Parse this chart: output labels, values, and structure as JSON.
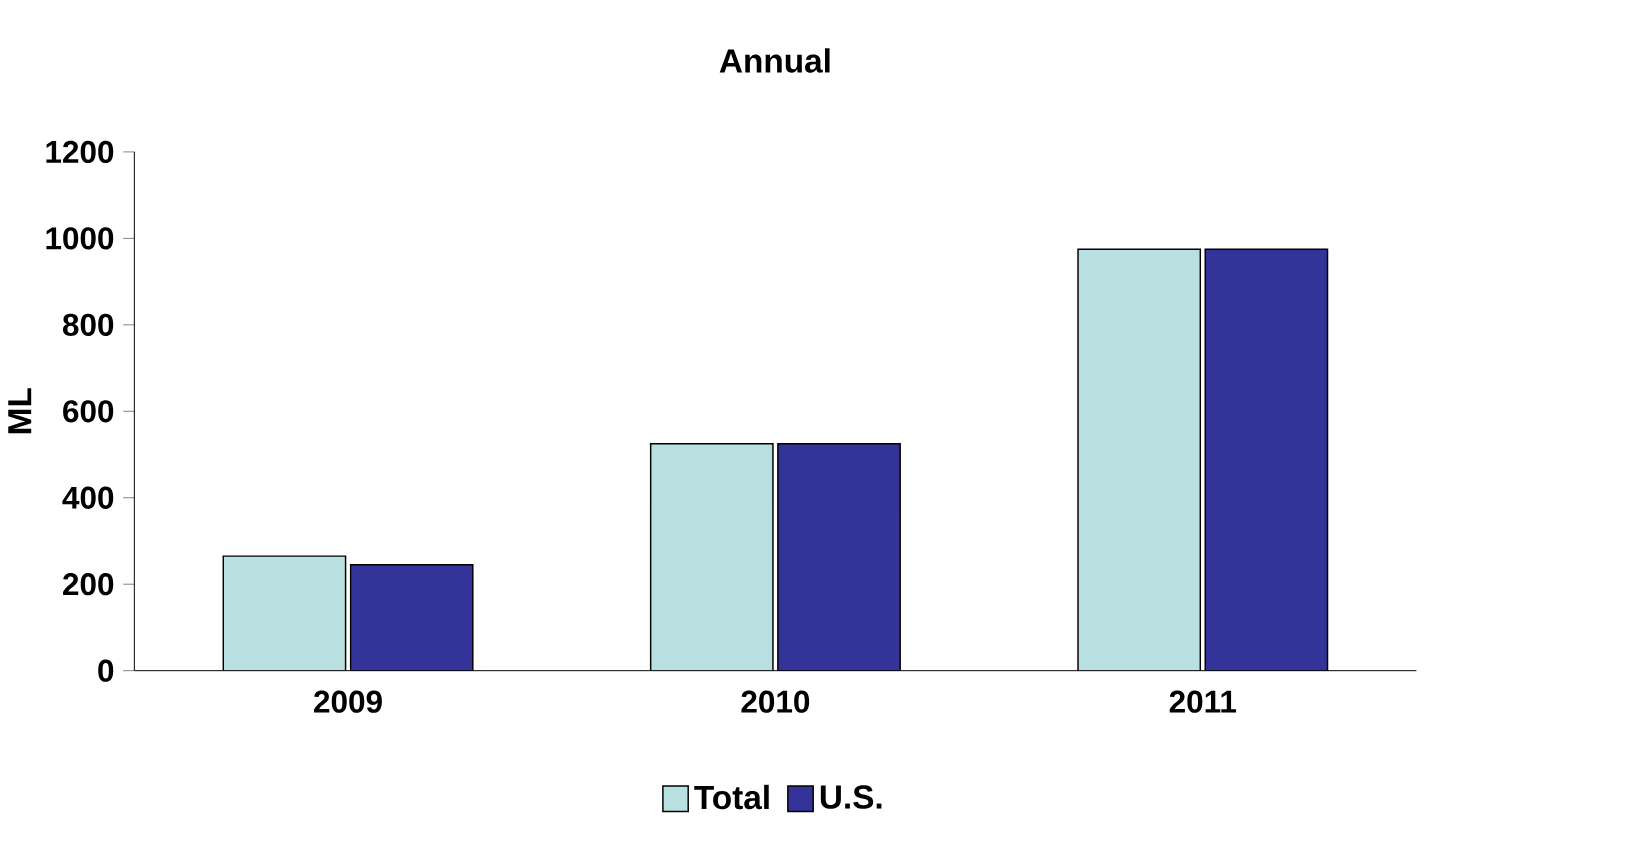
{
  "chart_data": {
    "type": "bar",
    "title": "Annual",
    "ylabel": "ML",
    "categories": [
      "2009",
      "2010",
      "2011"
    ],
    "series": [
      {
        "name": "Total",
        "color": "#b8e0e0",
        "values": [
          265,
          525,
          975
        ]
      },
      {
        "name": "U.S.",
        "color": "#333399",
        "values": [
          245,
          525,
          975
        ]
      }
    ],
    "ylim": [
      0,
      1200
    ],
    "yticks": [
      0,
      200,
      400,
      600,
      800,
      1000,
      1200
    ],
    "grid": false,
    "legend": "bottom"
  }
}
